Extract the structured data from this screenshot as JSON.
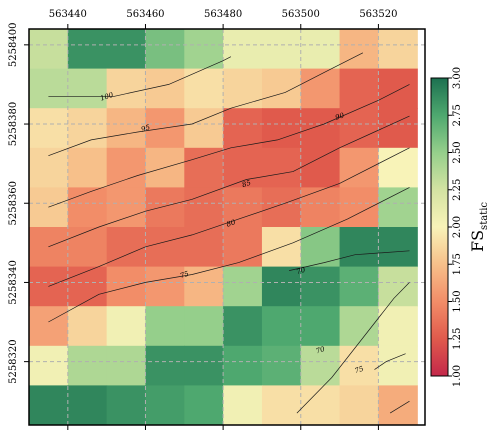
{
  "chart_data": {
    "type": "heatmap",
    "x_ticks": [
      "563440",
      "563460",
      "563480",
      "563500",
      "563520"
    ],
    "x_values": [
      563440,
      563460,
      563480,
      563500,
      563520
    ],
    "y_ticks": [
      "5258400",
      "5258380",
      "5258360",
      "5258340",
      "5258320"
    ],
    "y_values": [
      5258400,
      5258380,
      5258360,
      5258340,
      5258320
    ],
    "xlim": [
      563430,
      563532
    ],
    "ylim": [
      5258304,
      5258404
    ],
    "cell_size": 10,
    "x_grid_origin": 563430,
    "y_grid_top": 5258404,
    "grid": true,
    "colormap_range": [
      1.0,
      3.0
    ],
    "colorbar": {
      "label_main": "FS",
      "label_sub": "static",
      "ticks": [
        "1.00",
        "1.25",
        "1.50",
        "1.75",
        "2.00",
        "2.25",
        "2.50",
        "2.75",
        "3.00"
      ],
      "tick_values": [
        1.0,
        1.25,
        1.5,
        1.75,
        2.0,
        2.25,
        2.5,
        2.75,
        3.0
      ]
    },
    "values": [
      [
        2.3,
        2.85,
        2.85,
        2.6,
        2.45,
        2.1,
        2.1,
        2.1,
        1.7,
        1.85
      ],
      [
        2.35,
        2.35,
        1.85,
        1.8,
        1.9,
        1.85,
        1.8,
        1.55,
        1.3,
        1.25
      ],
      [
        1.9,
        1.85,
        1.7,
        1.55,
        1.8,
        1.3,
        1.25,
        1.25,
        1.3,
        1.25
      ],
      [
        1.85,
        1.75,
        1.55,
        1.7,
        1.35,
        1.3,
        1.3,
        1.25,
        1.55,
        2.0
      ],
      [
        1.8,
        1.5,
        1.55,
        1.4,
        1.35,
        1.4,
        1.35,
        1.45,
        1.5,
        2.45
      ],
      [
        1.45,
        1.45,
        1.35,
        1.35,
        1.35,
        1.4,
        1.9,
        2.55,
        2.9,
        2.9
      ],
      [
        1.3,
        1.3,
        1.5,
        1.55,
        1.7,
        2.45,
        2.9,
        2.85,
        2.7,
        2.3
      ],
      [
        1.6,
        1.85,
        2.05,
        2.5,
        2.5,
        2.85,
        2.75,
        2.75,
        2.4,
        2.05
      ],
      [
        2.05,
        2.4,
        2.4,
        2.85,
        2.85,
        2.75,
        2.7,
        2.35,
        1.9,
        2.05
      ],
      [
        2.9,
        2.9,
        2.85,
        2.8,
        2.75,
        2.05,
        1.9,
        1.9,
        1.85,
        1.65
      ]
    ],
    "contours": [
      {
        "label": "100",
        "points": [
          [
            563435,
            5258387
          ],
          [
            563452,
            5258387
          ],
          [
            563466,
            5258390
          ],
          [
            563480,
            5258396
          ],
          [
            563482,
            5258397
          ]
        ],
        "label_at": [
          563450,
          5258387
        ]
      },
      {
        "label": "95",
        "points": [
          [
            563435,
            5258372
          ],
          [
            563446,
            5258376
          ],
          [
            563458,
            5258378
          ],
          [
            563472,
            5258380
          ],
          [
            563482,
            5258384
          ],
          [
            563496,
            5258388
          ],
          [
            563508,
            5258394
          ],
          [
            563516,
            5258398
          ]
        ],
        "label_at": [
          563460,
          5258379
        ]
      },
      {
        "label": "90",
        "points": [
          [
            563435,
            5258359
          ],
          [
            563446,
            5258363
          ],
          [
            563458,
            5258367
          ],
          [
            563472,
            5258371
          ],
          [
            563482,
            5258374
          ],
          [
            563494,
            5258376
          ],
          [
            563506,
            5258380
          ],
          [
            563520,
            5258386
          ],
          [
            563528,
            5258390
          ]
        ],
        "label_at": [
          563510,
          5258382
        ]
      },
      {
        "label": "85",
        "points": [
          [
            563435,
            5258349
          ],
          [
            563448,
            5258354
          ],
          [
            563460,
            5258358
          ],
          [
            563472,
            5258361
          ],
          [
            563486,
            5258366
          ],
          [
            563498,
            5258368
          ],
          [
            563510,
            5258374
          ],
          [
            563528,
            5258382
          ]
        ],
        "label_at": [
          563486,
          5258365
        ]
      },
      {
        "label": "80",
        "points": [
          [
            563435,
            5258339
          ],
          [
            563448,
            5258344
          ],
          [
            563460,
            5258349
          ],
          [
            563472,
            5258352
          ],
          [
            563484,
            5258356
          ],
          [
            563496,
            5258360
          ],
          [
            563510,
            5258365
          ],
          [
            563528,
            5258374
          ]
        ],
        "label_at": [
          563482,
          5258355
        ]
      },
      {
        "label": "75",
        "points": [
          [
            563435,
            5258330
          ],
          [
            563448,
            5258337
          ],
          [
            563460,
            5258340
          ],
          [
            563472,
            5258342
          ],
          [
            563484,
            5258345
          ],
          [
            563498,
            5258350
          ],
          [
            563512,
            5258356
          ],
          [
            563528,
            5258364
          ]
        ],
        "label_at": [
          563470,
          5258342
        ]
      },
      {
        "label": "70",
        "points": [
          [
            563497,
            5258343
          ],
          [
            563506,
            5258345
          ],
          [
            563514,
            5258347
          ],
          [
            563528,
            5258348
          ]
        ],
        "label_at": [
          563500,
          5258343
        ]
      },
      {
        "label": "70",
        "points": [
          [
            563499,
            5258307
          ],
          [
            563508,
            5258316
          ],
          [
            563516,
            5258326
          ],
          [
            563524,
            5258336
          ],
          [
            563528,
            5258340
          ]
        ],
        "label_at": [
          563505,
          5258323
        ]
      },
      {
        "label": "75",
        "points": [
          [
            563519,
            5258318
          ],
          [
            563522,
            5258320
          ],
          [
            563527,
            5258322
          ]
        ],
        "label_at": [
          563515,
          5258318
        ]
      },
      {
        "label": "",
        "points": [
          [
            563523,
            5258307
          ],
          [
            563528,
            5258310
          ]
        ],
        "label_at": null
      }
    ]
  }
}
